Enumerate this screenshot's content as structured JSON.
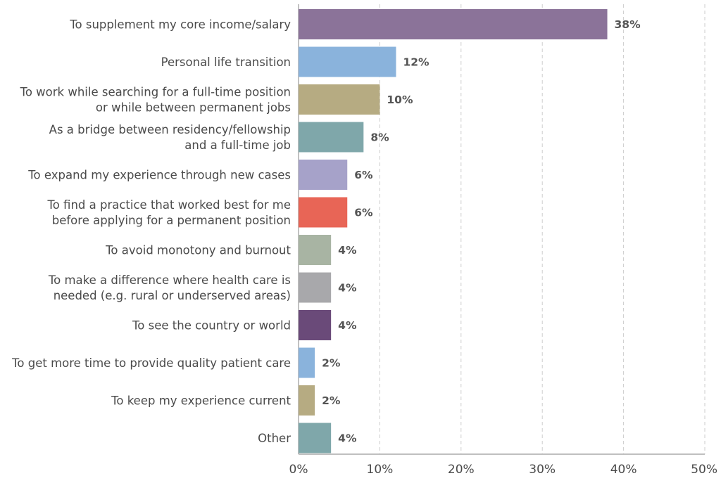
{
  "chart_data": {
    "type": "bar",
    "orientation": "horizontal",
    "title": "",
    "xlabel": "",
    "ylabel": "",
    "xlim": [
      0,
      50
    ],
    "grid": true,
    "legend": "none",
    "ticks": [
      "0%",
      "10%",
      "20%",
      "30%",
      "40%",
      "50%"
    ],
    "tick_values": [
      0,
      10,
      20,
      30,
      40,
      50
    ],
    "categories": [
      [
        "To supplement my core income/salary"
      ],
      [
        "Personal life transition"
      ],
      [
        "To work while searching for a full-time position",
        "or while between permanent jobs"
      ],
      [
        "As a bridge between residency/fellowship",
        "and a full-time job"
      ],
      [
        "To expand my experience through new cases"
      ],
      [
        "To find a practice that worked best for me",
        "before applying for a permanent position"
      ],
      [
        "To avoid monotony and burnout"
      ],
      [
        "To make a difference where health care is",
        "needed (e.g. rural or underserved areas)"
      ],
      [
        "To see the country or world"
      ],
      [
        "To get more time to provide quality patient care"
      ],
      [
        "To keep my experience current"
      ],
      [
        "Other"
      ]
    ],
    "values": [
      38,
      12,
      10,
      8,
      6,
      6,
      4,
      4,
      4,
      2,
      2,
      4
    ],
    "value_labels": [
      "38%",
      "12%",
      "10%",
      "8%",
      "6%",
      "6%",
      "4%",
      "4%",
      "4%",
      "2%",
      "2%",
      "4%"
    ],
    "colors": [
      "#8b7399",
      "#8ab3dc",
      "#b6ab82",
      "#7fa7aa",
      "#a6a2c9",
      "#e86556",
      "#a8b4a3",
      "#a8a8ab",
      "#6a4a79",
      "#8ab3dc",
      "#b6ab82",
      "#7fa7aa"
    ]
  }
}
